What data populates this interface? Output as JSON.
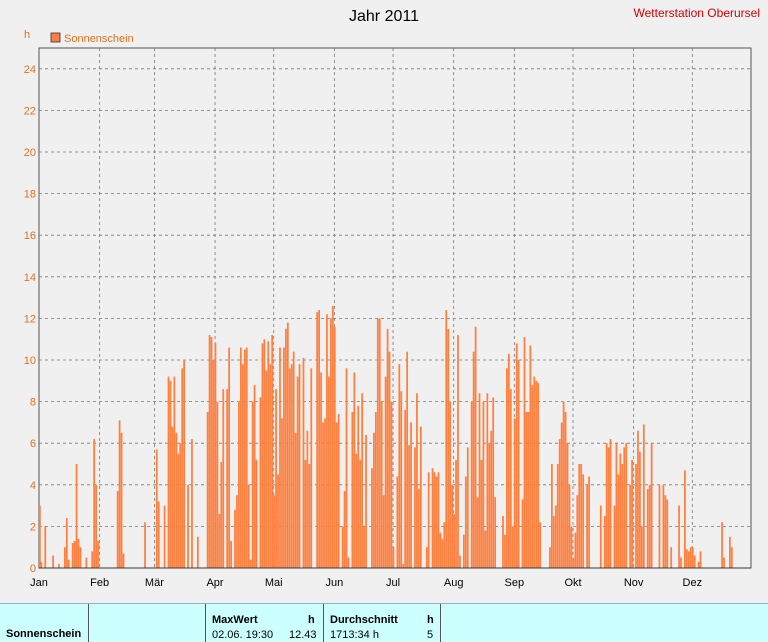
{
  "header": {
    "title": "Jahr 2011",
    "station": "Wetterstation Oberursel",
    "unit": "h"
  },
  "legend": {
    "label": "Sonnenschein",
    "color": "#ff7f3f",
    "placement": "top-left"
  },
  "chart_data": {
    "type": "bar",
    "title": "Jahr 2011",
    "xlabel": "",
    "ylabel": "h",
    "ylim": [
      0,
      25
    ],
    "yticks": [
      0,
      2,
      4,
      6,
      8,
      10,
      12,
      14,
      16,
      18,
      20,
      22,
      24
    ],
    "xlim_days": [
      1,
      365
    ],
    "month_ticks": [
      {
        "label": "Jan",
        "day": 1
      },
      {
        "label": "Feb",
        "day": 32
      },
      {
        "label": "Mär",
        "day": 60
      },
      {
        "label": "Apr",
        "day": 91
      },
      {
        "label": "Mai",
        "day": 121
      },
      {
        "label": "Jun",
        "day": 152
      },
      {
        "label": "Jul",
        "day": 182
      },
      {
        "label": "Aug",
        "day": 213
      },
      {
        "label": "Sep",
        "day": 244
      },
      {
        "label": "Okt",
        "day": 274
      },
      {
        "label": "Nov",
        "day": 305
      },
      {
        "label": "Dez",
        "day": 335
      }
    ],
    "grid": true,
    "bar_color": "#ff7f3f",
    "series": [
      {
        "name": "Sonnenschein",
        "values": [
          3.0,
          0.3,
          0.0,
          2.0,
          0.0,
          0.0,
          0.0,
          0.6,
          0.0,
          0.0,
          0.2,
          0.0,
          0.0,
          1.0,
          2.4,
          0.4,
          0.0,
          1.2,
          1.3,
          5.0,
          1.4,
          1.0,
          0.0,
          0.0,
          0.5,
          0.0,
          0.0,
          0.8,
          6.2,
          4.0,
          1.3,
          0.0,
          0.0,
          0.0,
          0.0,
          0.0,
          0.0,
          0.0,
          0.0,
          0.0,
          3.7,
          7.1,
          6.5,
          0.7,
          0.0,
          0.0,
          0.0,
          0.0,
          0.0,
          0.0,
          0.0,
          0.0,
          0.0,
          0.0,
          2.2,
          0.0,
          0.0,
          0.0,
          0.0,
          0.0,
          5.7,
          3.2,
          0.0,
          0.0,
          3.0,
          0.0,
          9.2,
          9.0,
          6.8,
          9.2,
          6.5,
          5.5,
          6.0,
          9.6,
          10.0,
          0.0,
          4.0,
          0.0,
          6.2,
          0.0,
          0.0,
          1.5,
          0.0,
          0.0,
          0.0,
          0.0,
          7.5,
          11.2,
          11.1,
          10.0,
          10.8,
          8.0,
          2.6,
          5.1,
          8.6,
          0.0,
          8.6,
          10.6,
          1.3,
          0.0,
          2.8,
          3.5,
          8.0,
          10.6,
          9.8,
          10.5,
          10.6,
          4.0,
          0.4,
          8.0,
          8.8,
          5.2,
          0.0,
          8.2,
          10.8,
          11.0,
          9.5,
          10.9,
          9.8,
          11.2,
          3.5,
          8.6,
          4.5,
          10.6,
          7.2,
          10.6,
          11.5,
          11.8,
          9.6,
          9.8,
          10.4,
          6.5,
          9.2,
          9.8,
          0.0,
          10.1,
          5.2,
          6.6,
          5.0,
          9.6,
          0.0,
          0.0,
          12.3,
          12.4,
          9.4,
          7.0,
          7.2,
          12.2,
          9.2,
          12.0,
          12.6,
          11.6,
          7.0,
          7.4,
          0.0,
          2.0,
          3.7,
          9.6,
          0.5,
          0.0,
          7.5,
          9.4,
          5.5,
          7.8,
          5.2,
          8.4,
          2.0,
          6.4,
          0.0,
          0.0,
          4.8,
          6.5,
          7.5,
          12.0,
          12.0,
          8.0,
          3.5,
          9.2,
          11.5,
          10.4,
          8.0,
          1.0,
          0.0,
          4.4,
          9.8,
          8.5,
          0.2,
          7.6,
          10.4,
          5.9,
          7.0,
          0.0,
          5.8,
          8.4,
          3.8,
          6.8,
          0.0,
          0.0,
          1.0,
          4.6,
          0.0,
          4.8,
          4.6,
          4.4,
          4.6,
          1.7,
          1.4,
          2.2,
          12.4,
          11.5,
          8.0,
          4.0,
          2.6,
          5.2,
          11.2,
          0.6,
          0.0,
          1.6,
          4.4,
          5.8,
          0.0,
          8.0,
          10.4,
          11.6,
          3.4,
          8.4,
          5.2,
          8.0,
          1.8,
          8.4,
          6.0,
          6.6,
          8.2,
          3.4,
          0.0,
          0.0,
          0.0,
          2.5,
          1.6,
          9.6,
          10.3,
          8.6,
          2.0,
          7.2,
          10.8,
          10.0,
          0.0,
          3.3,
          11.1,
          7.5,
          7.5,
          10.7,
          8.8,
          9.2,
          9.0,
          8.9,
          2.2,
          0.0,
          0.0,
          0.0,
          0.0,
          1.0,
          5.0,
          2.5,
          3.0,
          5.0,
          6.2,
          7.0,
          8.0,
          7.5,
          6.0,
          4.0,
          2.0,
          0.5,
          1.7,
          3.5,
          5.0,
          5.0,
          4.5,
          0.0,
          4.0,
          4.4,
          0.0,
          0.0,
          0.0,
          0.0,
          0.0,
          3.0,
          0.0,
          2.5,
          6.0,
          5.8,
          6.2,
          0.0,
          3.0,
          6.0,
          4.5,
          5.5,
          5.0,
          5.8,
          6.0,
          0.0,
          4.0,
          5.2,
          0.0,
          5.0,
          6.6,
          5.6,
          2.0,
          6.9,
          0.0,
          3.8,
          4.0,
          6.0,
          0.0,
          0.0,
          0.0,
          4.0,
          0.0,
          4.0,
          3.5,
          3.3,
          0.0,
          1.0,
          0.0,
          0.0,
          0.0,
          3.0,
          0.5,
          0.0,
          4.7,
          0.9,
          0.8,
          1.0,
          1.0,
          0.6,
          0.0,
          0.3,
          0.8,
          0.0,
          0.0,
          0.0,
          0.0,
          0.0,
          0.0,
          0.0,
          0.0,
          0.0,
          0.0,
          2.2,
          0.5,
          0.0,
          0.0,
          1.5,
          1.0
        ]
      }
    ]
  },
  "summary": {
    "row_label": "Sonnenschein",
    "max_header": "MaxWert",
    "max_unit": "h",
    "max_datetime": "02.06.  19:30",
    "max_value": "12.43",
    "avg_header": "Durchschnitt",
    "avg_unit": "h",
    "avg_total": "1713:34 h",
    "avg_value": "5"
  }
}
